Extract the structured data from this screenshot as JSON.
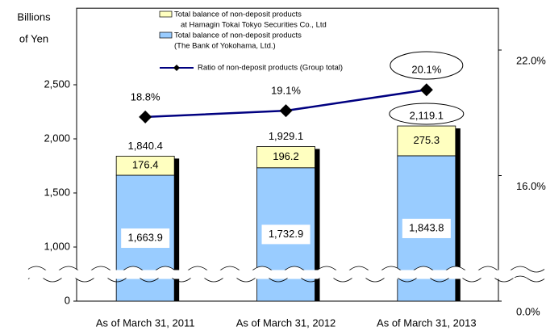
{
  "chart_data": {
    "type": "bar",
    "stacked": true,
    "ylabel": [
      "Billions",
      "of Yen"
    ],
    "categories": [
      "As of March 31, 2011",
      "As of March 31, 2012",
      "As of March 31, 2013"
    ],
    "series": [
      {
        "name": "Total balance of non-deposit products",
        "name_note": "(The Bank of Yokohama, Ltd.)",
        "color": "#99ccff",
        "values": [
          1663.9,
          1732.9,
          1843.8
        ],
        "value_labels": [
          "1,663.9",
          "1,732.9",
          "1,843.8"
        ]
      },
      {
        "name": "Total balance of non-deposit products",
        "name_note": "at Hamagin Tokai Tokyo Securities Co., Ltd",
        "color": "#ffffc0",
        "values": [
          176.4,
          196.2,
          275.3
        ]
      },
      {
        "name": "Ratio of non-deposit products (Group total)",
        "type": "line",
        "axis": "y2",
        "color": "#000080",
        "values": [
          18.8,
          19.1,
          20.1
        ],
        "value_labels": [
          "18.8%",
          "19.1%",
          "20.1%"
        ]
      }
    ],
    "totals": [
      1840.4,
      1929.1,
      2119.1
    ],
    "total_labels": [
      "1,840.4",
      "1,929.1",
      "2,119.1"
    ],
    "ylim": [
      0,
      3200
    ],
    "yticks": [
      0,
      {
        "value": 1000,
        "label": "1,000"
      },
      {
        "value": 1500,
        "label": "1,500"
      },
      {
        "value": 2000,
        "label": "2,000"
      },
      {
        "value": 2500,
        "label": "2,500"
      }
    ],
    "y2lim": [
      0,
      24
    ],
    "y2ticks": [
      {
        "value": 0,
        "label": "0.0%"
      },
      {
        "value": 16,
        "label": "16.0%"
      },
      {
        "value": 22,
        "label": "22.0%"
      }
    ],
    "y_break": true
  }
}
